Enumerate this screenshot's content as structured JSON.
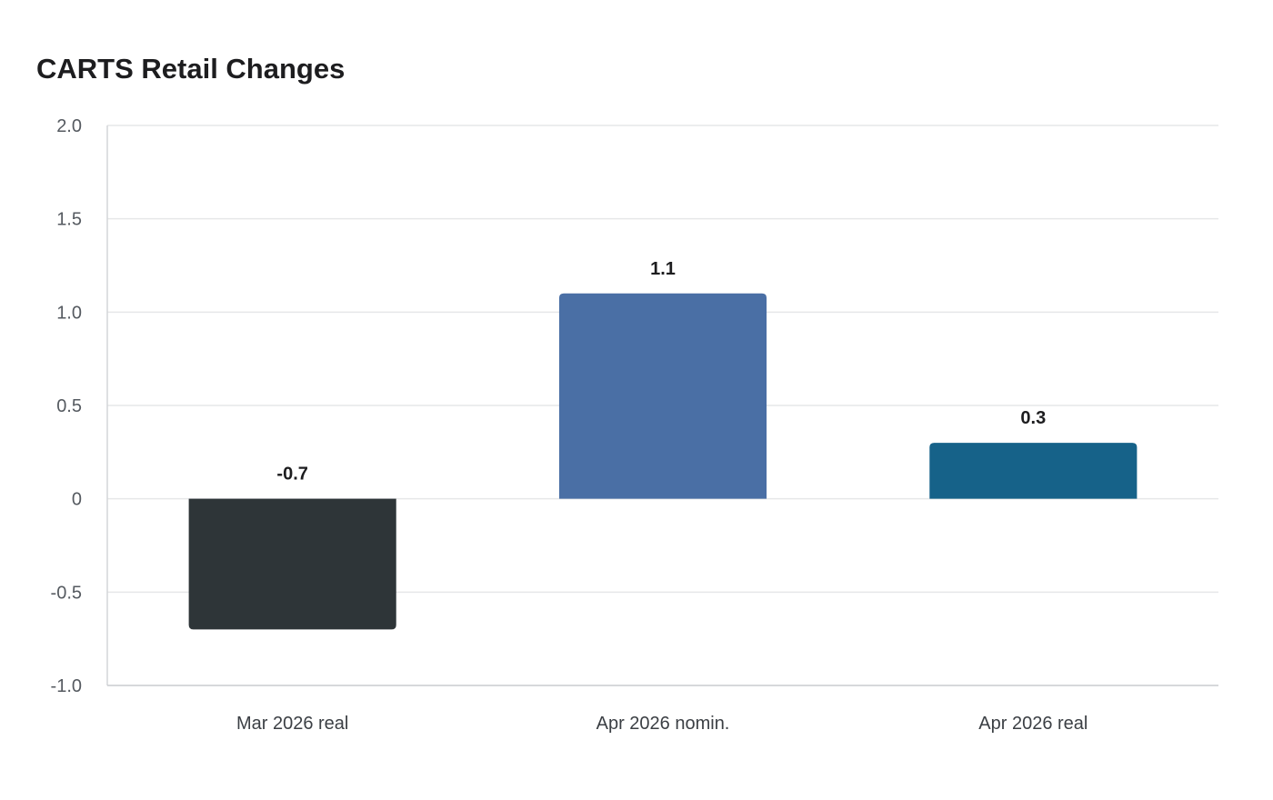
{
  "chart_data": {
    "type": "bar",
    "title": "CARTS Retail Changes",
    "xlabel": "",
    "ylabel": "",
    "categories": [
      "Mar 2026 real",
      "Apr 2026 nomin.",
      "Apr 2026 real"
    ],
    "values": [
      -0.7,
      1.1,
      0.3
    ],
    "value_labels": [
      "-0.7",
      "1.1",
      "0.3"
    ],
    "bar_colors": [
      "#2e3538",
      "#4a6fa5",
      "#166289"
    ],
    "ylim": [
      -1.0,
      2.0
    ],
    "yticks": [
      -1.0,
      -0.5,
      0,
      0.5,
      1.0,
      1.5,
      2.0
    ],
    "ytick_labels": [
      "-1.0",
      "-0.5",
      "0",
      "0.5",
      "1.0",
      "1.5",
      "2.0"
    ],
    "grid": true,
    "legend": "none"
  }
}
